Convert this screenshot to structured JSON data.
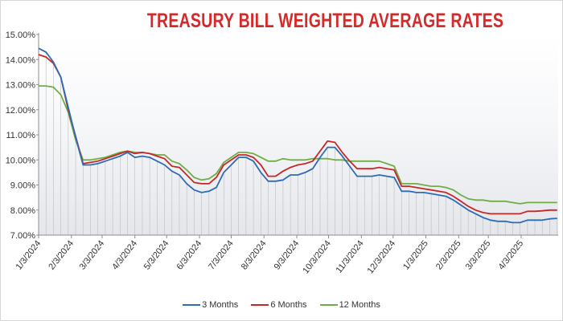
{
  "chart_data": {
    "type": "line",
    "title": "TREASURY BILL WEIGHTED AVERAGE RATES",
    "xlabel": "",
    "ylabel": "",
    "ylim": [
      7.0,
      15.0
    ],
    "yticks": [
      "7.00%",
      "8.00%",
      "9.00%",
      "10.00%",
      "11.00%",
      "12.00%",
      "13.00%",
      "14.00%",
      "15.00%"
    ],
    "xticks": [
      "1/3/2024",
      "2/3/2024",
      "3/3/2024",
      "4/3/2024",
      "5/3/2024",
      "6/3/2024",
      "7/3/2024",
      "8/3/2024",
      "9/3/2024",
      "10/3/2024",
      "11/3/2024",
      "12/3/2024",
      "1/3/2025",
      "2/3/2025",
      "3/3/2025",
      "4/3/2025"
    ],
    "x_range": [
      "2024-01-03",
      "2025-05-08"
    ],
    "grid": "vertical",
    "legend_position": "bottom",
    "series": [
      {
        "name": "3 Months",
        "color": "#2e6bb5",
        "points": [
          [
            "2024-01-03",
            14.45
          ],
          [
            "2024-01-10",
            14.3
          ],
          [
            "2024-01-17",
            13.9
          ],
          [
            "2024-01-24",
            13.3
          ],
          [
            "2024-01-31",
            12.1
          ],
          [
            "2024-02-07",
            10.9
          ],
          [
            "2024-02-14",
            9.8
          ],
          [
            "2024-02-21",
            9.8
          ],
          [
            "2024-02-28",
            9.85
          ],
          [
            "2024-03-06",
            9.95
          ],
          [
            "2024-03-13",
            10.05
          ],
          [
            "2024-03-20",
            10.15
          ],
          [
            "2024-03-27",
            10.3
          ],
          [
            "2024-04-03",
            10.1
          ],
          [
            "2024-04-10",
            10.15
          ],
          [
            "2024-04-17",
            10.1
          ],
          [
            "2024-04-24",
            9.95
          ],
          [
            "2024-05-01",
            9.8
          ],
          [
            "2024-05-08",
            9.55
          ],
          [
            "2024-05-15",
            9.4
          ],
          [
            "2024-05-22",
            9.05
          ],
          [
            "2024-05-29",
            8.8
          ],
          [
            "2024-06-05",
            8.7
          ],
          [
            "2024-06-12",
            8.75
          ],
          [
            "2024-06-19",
            8.9
          ],
          [
            "2024-06-26",
            9.5
          ],
          [
            "2024-07-03",
            9.8
          ],
          [
            "2024-07-10",
            10.1
          ],
          [
            "2024-07-17",
            10.1
          ],
          [
            "2024-07-24",
            9.95
          ],
          [
            "2024-07-31",
            9.5
          ],
          [
            "2024-08-07",
            9.15
          ],
          [
            "2024-08-14",
            9.15
          ],
          [
            "2024-08-21",
            9.2
          ],
          [
            "2024-08-28",
            9.4
          ],
          [
            "2024-09-04",
            9.4
          ],
          [
            "2024-09-11",
            9.5
          ],
          [
            "2024-09-18",
            9.65
          ],
          [
            "2024-09-25",
            10.1
          ],
          [
            "2024-10-02",
            10.5
          ],
          [
            "2024-10-09",
            10.5
          ],
          [
            "2024-10-16",
            10.15
          ],
          [
            "2024-10-23",
            9.75
          ],
          [
            "2024-10-30",
            9.35
          ],
          [
            "2024-11-06",
            9.35
          ],
          [
            "2024-11-13",
            9.35
          ],
          [
            "2024-11-20",
            9.4
          ],
          [
            "2024-11-27",
            9.35
          ],
          [
            "2024-12-04",
            9.3
          ],
          [
            "2024-12-11",
            8.75
          ],
          [
            "2024-12-18",
            8.75
          ],
          [
            "2024-12-25",
            8.7
          ],
          [
            "2025-01-01",
            8.7
          ],
          [
            "2025-01-08",
            8.65
          ],
          [
            "2025-01-15",
            8.6
          ],
          [
            "2025-01-22",
            8.55
          ],
          [
            "2025-01-29",
            8.4
          ],
          [
            "2025-02-05",
            8.2
          ],
          [
            "2025-02-12",
            8.0
          ],
          [
            "2025-02-19",
            7.85
          ],
          [
            "2025-02-26",
            7.7
          ],
          [
            "2025-03-05",
            7.6
          ],
          [
            "2025-03-12",
            7.55
          ],
          [
            "2025-03-19",
            7.55
          ],
          [
            "2025-03-26",
            7.5
          ],
          [
            "2025-04-02",
            7.5
          ],
          [
            "2025-04-09",
            7.6
          ],
          [
            "2025-04-16",
            7.6
          ],
          [
            "2025-04-23",
            7.6
          ],
          [
            "2025-04-30",
            7.65
          ],
          [
            "2025-05-07",
            7.67
          ]
        ]
      },
      {
        "name": "6 Months",
        "color": "#c62828",
        "points": [
          [
            "2024-01-03",
            14.2
          ],
          [
            "2024-01-10",
            14.1
          ],
          [
            "2024-01-17",
            13.85
          ],
          [
            "2024-01-24",
            13.3
          ],
          [
            "2024-01-31",
            12.0
          ],
          [
            "2024-02-07",
            10.95
          ],
          [
            "2024-02-14",
            9.85
          ],
          [
            "2024-02-21",
            9.9
          ],
          [
            "2024-02-28",
            9.95
          ],
          [
            "2024-03-06",
            10.05
          ],
          [
            "2024-03-13",
            10.15
          ],
          [
            "2024-03-20",
            10.25
          ],
          [
            "2024-03-27",
            10.35
          ],
          [
            "2024-04-03",
            10.25
          ],
          [
            "2024-04-10",
            10.3
          ],
          [
            "2024-04-17",
            10.25
          ],
          [
            "2024-04-24",
            10.15
          ],
          [
            "2024-05-01",
            10.05
          ],
          [
            "2024-05-08",
            9.75
          ],
          [
            "2024-05-15",
            9.7
          ],
          [
            "2024-05-22",
            9.4
          ],
          [
            "2024-05-29",
            9.1
          ],
          [
            "2024-06-05",
            9.05
          ],
          [
            "2024-06-12",
            9.05
          ],
          [
            "2024-06-19",
            9.3
          ],
          [
            "2024-06-26",
            9.8
          ],
          [
            "2024-07-03",
            10.0
          ],
          [
            "2024-07-10",
            10.2
          ],
          [
            "2024-07-17",
            10.2
          ],
          [
            "2024-07-24",
            10.1
          ],
          [
            "2024-07-31",
            9.8
          ],
          [
            "2024-08-07",
            9.35
          ],
          [
            "2024-08-14",
            9.35
          ],
          [
            "2024-08-21",
            9.55
          ],
          [
            "2024-08-28",
            9.7
          ],
          [
            "2024-09-04",
            9.8
          ],
          [
            "2024-09-11",
            9.85
          ],
          [
            "2024-09-18",
            9.95
          ],
          [
            "2024-09-25",
            10.35
          ],
          [
            "2024-10-02",
            10.75
          ],
          [
            "2024-10-09",
            10.7
          ],
          [
            "2024-10-16",
            10.3
          ],
          [
            "2024-10-23",
            9.95
          ],
          [
            "2024-10-30",
            9.65
          ],
          [
            "2024-11-06",
            9.65
          ],
          [
            "2024-11-13",
            9.65
          ],
          [
            "2024-11-20",
            9.7
          ],
          [
            "2024-11-27",
            9.65
          ],
          [
            "2024-12-04",
            9.6
          ],
          [
            "2024-12-11",
            8.95
          ],
          [
            "2024-12-18",
            8.95
          ],
          [
            "2024-12-25",
            8.9
          ],
          [
            "2025-01-01",
            8.85
          ],
          [
            "2025-01-08",
            8.8
          ],
          [
            "2025-01-15",
            8.75
          ],
          [
            "2025-01-22",
            8.7
          ],
          [
            "2025-01-29",
            8.55
          ],
          [
            "2025-02-05",
            8.35
          ],
          [
            "2025-02-12",
            8.15
          ],
          [
            "2025-02-19",
            8.0
          ],
          [
            "2025-02-26",
            7.9
          ],
          [
            "2025-03-05",
            7.85
          ],
          [
            "2025-03-12",
            7.85
          ],
          [
            "2025-03-19",
            7.85
          ],
          [
            "2025-03-26",
            7.85
          ],
          [
            "2025-04-02",
            7.85
          ],
          [
            "2025-04-09",
            7.95
          ],
          [
            "2025-04-16",
            7.95
          ],
          [
            "2025-04-23",
            7.97
          ],
          [
            "2025-04-30",
            8.0
          ],
          [
            "2025-05-07",
            8.0
          ]
        ]
      },
      {
        "name": "12 Months",
        "color": "#6fae45",
        "points": [
          [
            "2024-01-03",
            12.95
          ],
          [
            "2024-01-10",
            12.95
          ],
          [
            "2024-01-17",
            12.9
          ],
          [
            "2024-01-24",
            12.6
          ],
          [
            "2024-01-31",
            11.9
          ],
          [
            "2024-02-07",
            10.8
          ],
          [
            "2024-02-14",
            10.0
          ],
          [
            "2024-02-21",
            10.0
          ],
          [
            "2024-02-28",
            10.05
          ],
          [
            "2024-03-06",
            10.1
          ],
          [
            "2024-03-13",
            10.2
          ],
          [
            "2024-03-20",
            10.3
          ],
          [
            "2024-03-27",
            10.35
          ],
          [
            "2024-04-03",
            10.3
          ],
          [
            "2024-04-10",
            10.3
          ],
          [
            "2024-04-17",
            10.25
          ],
          [
            "2024-04-24",
            10.2
          ],
          [
            "2024-05-01",
            10.2
          ],
          [
            "2024-05-08",
            9.95
          ],
          [
            "2024-05-15",
            9.85
          ],
          [
            "2024-05-22",
            9.6
          ],
          [
            "2024-05-29",
            9.3
          ],
          [
            "2024-06-05",
            9.2
          ],
          [
            "2024-06-12",
            9.25
          ],
          [
            "2024-06-19",
            9.45
          ],
          [
            "2024-06-26",
            9.9
          ],
          [
            "2024-07-03",
            10.1
          ],
          [
            "2024-07-10",
            10.3
          ],
          [
            "2024-07-17",
            10.3
          ],
          [
            "2024-07-24",
            10.25
          ],
          [
            "2024-07-31",
            10.1
          ],
          [
            "2024-08-07",
            9.95
          ],
          [
            "2024-08-14",
            9.95
          ],
          [
            "2024-08-21",
            10.05
          ],
          [
            "2024-08-28",
            10.0
          ],
          [
            "2024-09-04",
            10.0
          ],
          [
            "2024-09-11",
            10.0
          ],
          [
            "2024-09-18",
            10.05
          ],
          [
            "2024-09-25",
            10.05
          ],
          [
            "2024-10-02",
            10.05
          ],
          [
            "2024-10-09",
            10.0
          ],
          [
            "2024-10-16",
            10.0
          ],
          [
            "2024-10-23",
            9.95
          ],
          [
            "2024-10-30",
            9.95
          ],
          [
            "2024-11-06",
            9.95
          ],
          [
            "2024-11-13",
            9.95
          ],
          [
            "2024-11-20",
            9.95
          ],
          [
            "2024-11-27",
            9.85
          ],
          [
            "2024-12-04",
            9.75
          ],
          [
            "2024-12-11",
            9.05
          ],
          [
            "2024-12-18",
            9.05
          ],
          [
            "2024-12-25",
            9.05
          ],
          [
            "2025-01-01",
            9.0
          ],
          [
            "2025-01-08",
            8.95
          ],
          [
            "2025-01-15",
            8.95
          ],
          [
            "2025-01-22",
            8.9
          ],
          [
            "2025-01-29",
            8.8
          ],
          [
            "2025-02-05",
            8.6
          ],
          [
            "2025-02-12",
            8.45
          ],
          [
            "2025-02-19",
            8.4
          ],
          [
            "2025-02-26",
            8.4
          ],
          [
            "2025-03-05",
            8.35
          ],
          [
            "2025-03-12",
            8.35
          ],
          [
            "2025-03-19",
            8.35
          ],
          [
            "2025-03-26",
            8.3
          ],
          [
            "2025-04-02",
            8.25
          ],
          [
            "2025-04-09",
            8.3
          ],
          [
            "2025-04-16",
            8.3
          ],
          [
            "2025-04-23",
            8.3
          ],
          [
            "2025-04-30",
            8.3
          ],
          [
            "2025-05-07",
            8.3
          ]
        ]
      }
    ]
  }
}
